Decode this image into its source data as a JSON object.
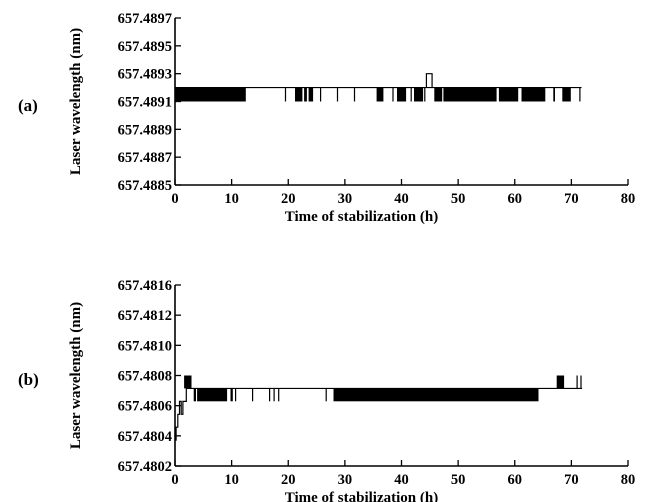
{
  "chart_data": [
    {
      "type": "line",
      "panel_label": "(a)",
      "xlabel": "Time of stabilization (h)",
      "ylabel": "Laser wavelength (nm)",
      "xlim": [
        0,
        80
      ],
      "ylim": [
        657.4885,
        657.4897
      ],
      "x_ticks": [
        "0",
        "10",
        "20",
        "30",
        "40",
        "50",
        "60",
        "70",
        "80"
      ],
      "y_ticks": [
        "657.4885",
        "657.4887",
        "657.4889",
        "657.4891",
        "657.4893",
        "657.4895",
        "657.4897"
      ],
      "baseline": 657.4892,
      "step": 657.4891,
      "spike": {
        "x": [
          44.4,
          45.4
        ],
        "y": 657.4893
      },
      "fluctuation_segments": [
        [
          0,
          12.5
        ],
        [
          19.4,
          19.6
        ],
        [
          21.2,
          22.5
        ],
        [
          22.8,
          23.3
        ],
        [
          23.6,
          24.4
        ],
        [
          25.6,
          25.8
        ],
        [
          28.6,
          28.8
        ],
        [
          31.6,
          31.8
        ],
        [
          35.6,
          36.8
        ],
        [
          38.4,
          38.6
        ],
        [
          39.2,
          40.8
        ],
        [
          41.6,
          41.8
        ],
        [
          42.2,
          43.8
        ],
        [
          44.0,
          44.2
        ],
        [
          45.8,
          47.2
        ],
        [
          47.4,
          56.8
        ],
        [
          57.2,
          60.6
        ],
        [
          61.2,
          65.4
        ],
        [
          66.8,
          67.1
        ],
        [
          68.4,
          69.9
        ],
        [
          71.4,
          71.6
        ]
      ],
      "x_end": 71.8
    },
    {
      "type": "line",
      "panel_label": "(b)",
      "xlabel": "Time of stabilization (h)",
      "ylabel": "Laser wavelength (nm)",
      "xlim": [
        0,
        80
      ],
      "ylim": [
        657.4802,
        657.4816
      ],
      "x_ticks": [
        "0",
        "10",
        "20",
        "30",
        "40",
        "50",
        "60",
        "70",
        "80"
      ],
      "y_ticks": [
        "657.4802",
        "657.4804",
        "657.4806",
        "657.4808",
        "657.4810",
        "657.4812",
        "657.4816"
      ],
      "baseline": 657.4808,
      "step": 657.4807,
      "warmup": {
        "x": [
          0,
          0.2,
          0.2,
          0.5,
          0.5,
          0.8,
          0.8,
          1.1,
          1.1,
          1.4,
          1.4,
          2.0
        ],
        "y": [
          657.4804,
          657.4804,
          657.4805,
          657.4805,
          657.4806,
          657.4806,
          657.4807,
          657.4807,
          657.4806,
          657.4806,
          657.4807,
          657.4807
        ]
      },
      "peak_segments": [
        [
          1.6,
          2.9
        ],
        [
          67.4,
          68.7
        ],
        [
          70.9,
          71.1
        ],
        [
          71.6,
          71.8
        ]
      ],
      "fluctuation_segments": [
        [
          3.3,
          3.7
        ],
        [
          3.9,
          9.2
        ],
        [
          9.8,
          10.2
        ],
        [
          10.6,
          10.8
        ],
        [
          13.6,
          13.8
        ],
        [
          16.6,
          16.8
        ],
        [
          17.4,
          17.6
        ],
        [
          18.2,
          18.4
        ],
        [
          26.6,
          26.8
        ],
        [
          28.0,
          64.2
        ]
      ],
      "x_end": 71.9
    }
  ]
}
